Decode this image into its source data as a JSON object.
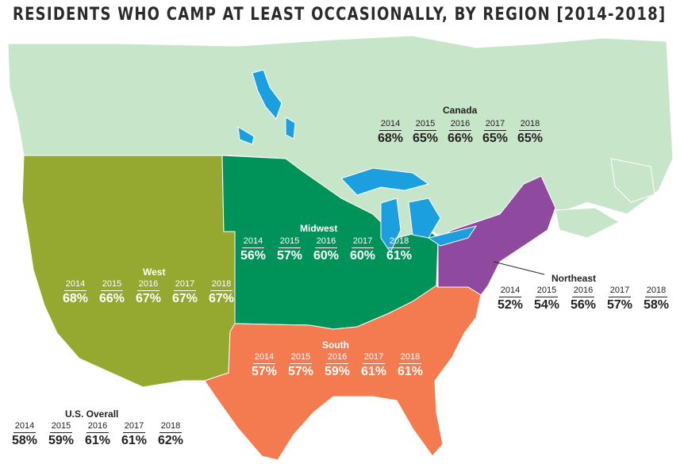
{
  "title": "RESIDENTS WHO CAMP AT LEAST OCCASIONALLY, BY REGION [2014-2018]",
  "colors": {
    "canada": "#c7e5c9",
    "west": "#95a82f",
    "midwest": "#009359",
    "south": "#f47a4f",
    "northeast": "#8f4aa0",
    "water": "#1c9fdf",
    "border": "#ffffff"
  },
  "regions": {
    "canada": {
      "name": "Canada",
      "years": [
        "2014",
        "2015",
        "2016",
        "2017",
        "2018"
      ],
      "values": [
        "68%",
        "65%",
        "66%",
        "65%",
        "65%"
      ]
    },
    "west": {
      "name": "West",
      "years": [
        "2014",
        "2015",
        "2016",
        "2017",
        "2018"
      ],
      "values": [
        "68%",
        "66%",
        "67%",
        "67%",
        "67%"
      ]
    },
    "midwest": {
      "name": "Midwest",
      "years": [
        "2014",
        "2015",
        "2016",
        "2017",
        "2018"
      ],
      "values": [
        "56%",
        "57%",
        "60%",
        "60%",
        "61%"
      ]
    },
    "northeast": {
      "name": "Northeast",
      "years": [
        "2014",
        "2015",
        "2016",
        "2017",
        "2018"
      ],
      "values": [
        "52%",
        "54%",
        "56%",
        "57%",
        "58%"
      ]
    },
    "south": {
      "name": "South",
      "years": [
        "2014",
        "2015",
        "2016",
        "2017",
        "2018"
      ],
      "values": [
        "57%",
        "57%",
        "59%",
        "61%",
        "61%"
      ]
    },
    "us_overall": {
      "name": "U.S. Overall",
      "years": [
        "2014",
        "2015",
        "2016",
        "2017",
        "2018"
      ],
      "values": [
        "58%",
        "59%",
        "61%",
        "61%",
        "62%"
      ]
    }
  }
}
